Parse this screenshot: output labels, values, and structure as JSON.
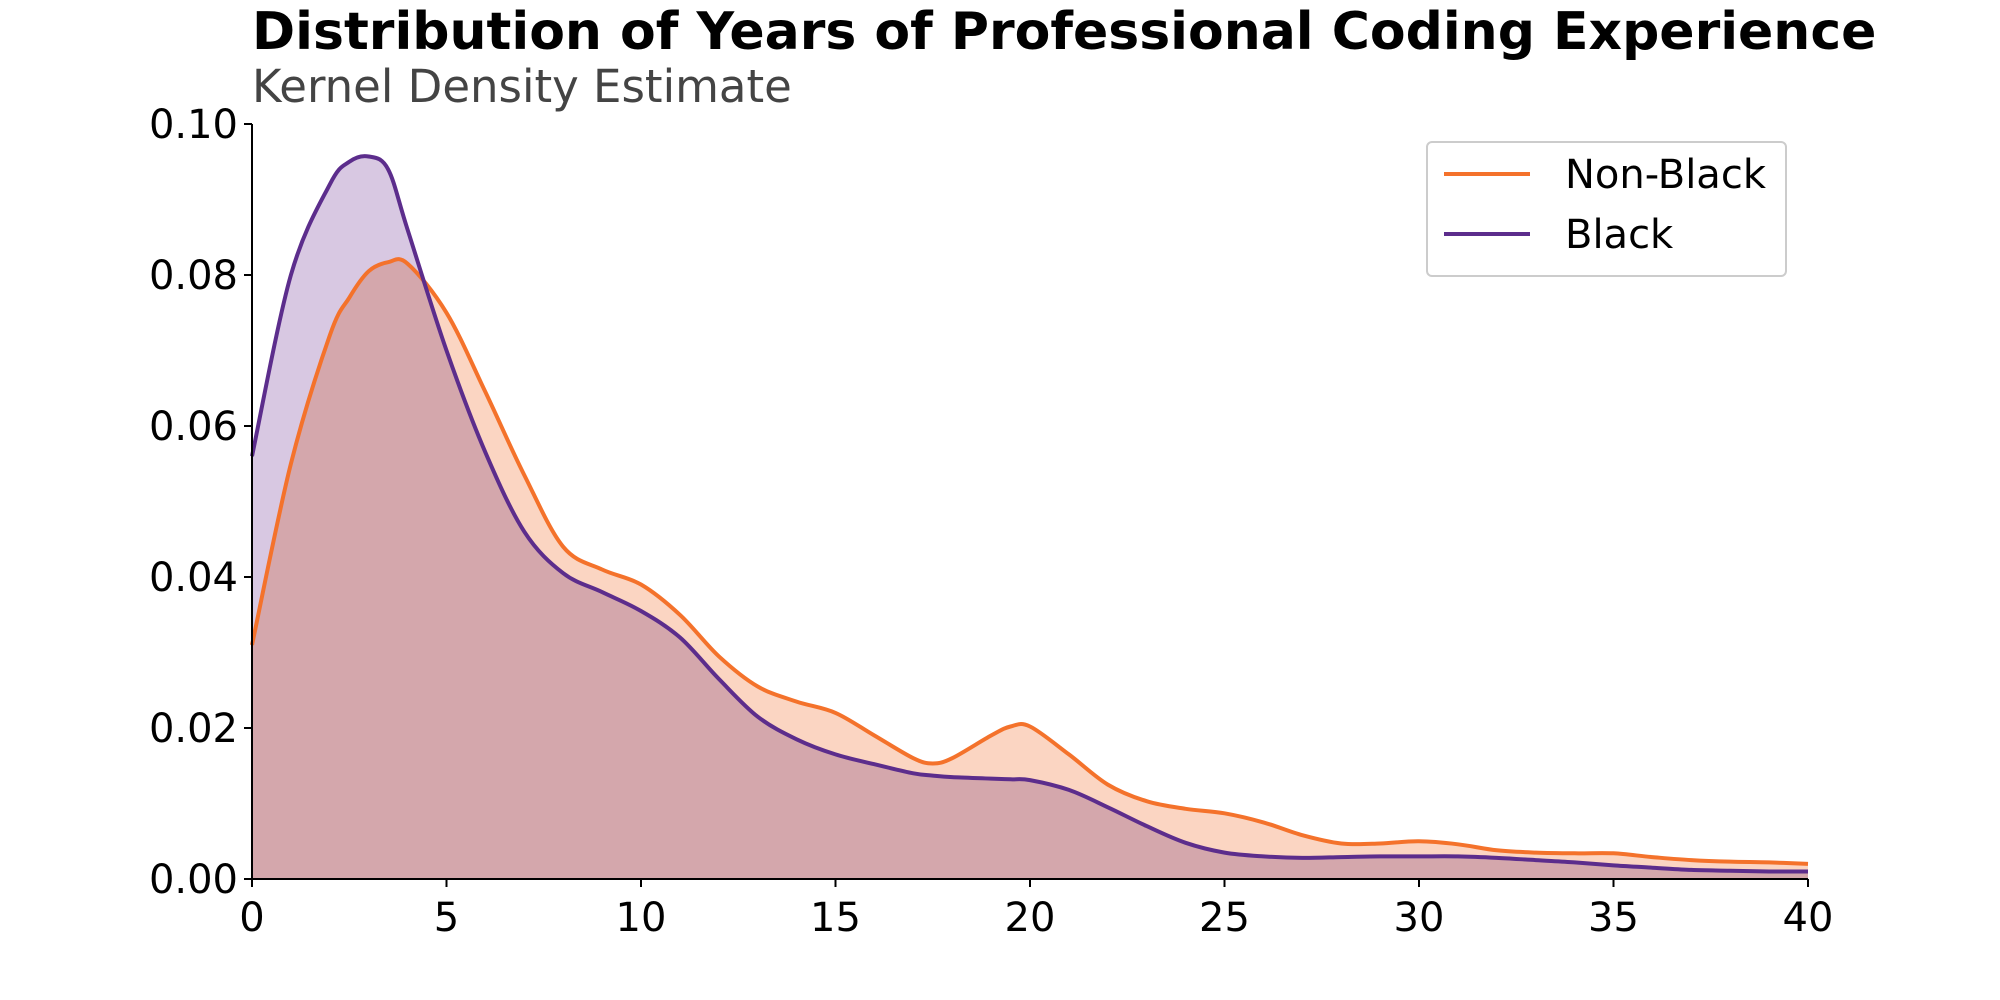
{
  "chart_data": {
    "type": "area",
    "title": "Distribution of Years of Professional Coding Experience",
    "subtitle": "Kernel Density Estimate",
    "xlabel": "",
    "ylabel": "",
    "xlim": [
      0,
      40
    ],
    "ylim": [
      0,
      0.1
    ],
    "x_ticks": [
      "0",
      "5",
      "10",
      "15",
      "20",
      "25",
      "30",
      "35",
      "40"
    ],
    "y_ticks": [
      "0.00",
      "0.02",
      "0.04",
      "0.06",
      "0.08",
      "0.10"
    ],
    "grid": false,
    "legend_position": "top-right",
    "x": [
      0,
      1,
      2,
      2.5,
      3,
      3.5,
      4,
      5,
      6,
      7,
      8,
      9,
      10,
      11,
      12,
      13,
      14,
      15,
      16,
      17,
      17.5,
      18,
      19,
      19.5,
      20,
      21,
      22,
      23,
      24,
      25,
      26,
      27,
      28,
      29,
      30,
      31,
      32,
      33,
      34,
      35,
      36,
      37,
      38,
      39,
      40
    ],
    "series": [
      {
        "name": "Non-Black",
        "color": "#F4722B",
        "fill": "#FBD5C2",
        "values": [
          0.031,
          0.055,
          0.072,
          0.077,
          0.0805,
          0.0817,
          0.0815,
          0.075,
          0.0645,
          0.0535,
          0.044,
          0.041,
          0.039,
          0.035,
          0.0295,
          0.0255,
          0.0235,
          0.022,
          0.019,
          0.016,
          0.0153,
          0.016,
          0.019,
          0.0202,
          0.0202,
          0.0165,
          0.0125,
          0.0103,
          0.0093,
          0.0087,
          0.0075,
          0.0058,
          0.0047,
          0.0047,
          0.005,
          0.0046,
          0.0038,
          0.0035,
          0.0034,
          0.0034,
          0.0029,
          0.0025,
          0.0023,
          0.0022,
          0.002
        ]
      },
      {
        "name": "Black",
        "color": "#5C2D8C",
        "fill": "#D8C8E2",
        "values": [
          0.056,
          0.08,
          0.092,
          0.095,
          0.0957,
          0.094,
          0.086,
          0.07,
          0.0565,
          0.046,
          0.0405,
          0.038,
          0.0355,
          0.032,
          0.0265,
          0.0215,
          0.0185,
          0.0165,
          0.0152,
          0.014,
          0.0137,
          0.0135,
          0.0133,
          0.0132,
          0.0131,
          0.0118,
          0.0095,
          0.007,
          0.0048,
          0.0035,
          0.003,
          0.0028,
          0.0029,
          0.003,
          0.003,
          0.003,
          0.0028,
          0.0025,
          0.0022,
          0.0018,
          0.0015,
          0.0012,
          0.0011,
          0.001,
          0.001
        ]
      }
    ]
  }
}
